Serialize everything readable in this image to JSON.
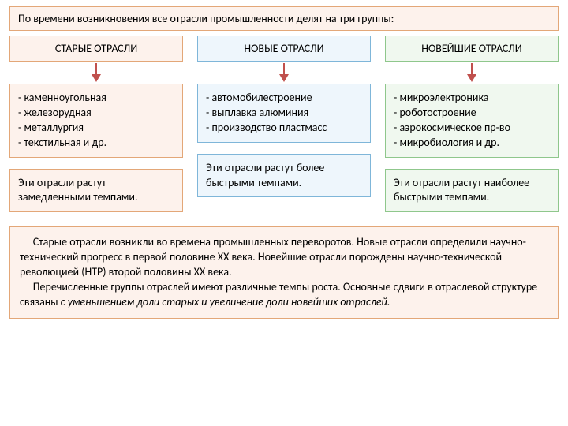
{
  "title": "По времени возникновения все отрасли промышленности делят на три группы:",
  "colors": {
    "col1_bg": "#fdf2ec",
    "col1_border": "#e3a778",
    "col2_bg": "#eef6fc",
    "col2_border": "#7fb6d9",
    "col3_bg": "#f0f8ef",
    "col3_border": "#8fc78c",
    "arrow": "#c0504d"
  },
  "columns": [
    {
      "header": "СТАРЫЕ ОТРАСЛИ",
      "examples": "- каменноугольная\n- железорудная\n- металлургия\n- текстильная и др.",
      "growth": "Эти отрасли растут замедленными тем­пами."
    },
    {
      "header": "НОВЫЕ ОТРАСЛИ",
      "examples": "- автомобилестроение\n- выплавка алюминия\n- производство пластмасс",
      "growth": "Эти отрасли растут более быстрыми темпами."
    },
    {
      "header": "НОВЕЙШИЕ ОТРАСЛИ",
      "examples": "- микроэлектроника\n- роботостроение\n- аэрокосмическое пр-во\n- микробиология и др.",
      "growth": "Эти отрасли растут наиболее быстрыми темпами."
    }
  ],
  "summary": {
    "p1a": "Старые отрасли возникли во времена промышленных переворотов. Новые отрасли определили научно-технический прогресс в первой половине XX века. Новейшие отрасли порождены научно-технической революцией (НТР) второй половины XX века.",
    "p2a": "Перечисленные группы отраслей имеют различные темпы роста. Основные сдвиги в отраслевой структуре связаны ",
    "p2b": "с уменьшением доли старых и увеличение доли новейших отраслей."
  }
}
